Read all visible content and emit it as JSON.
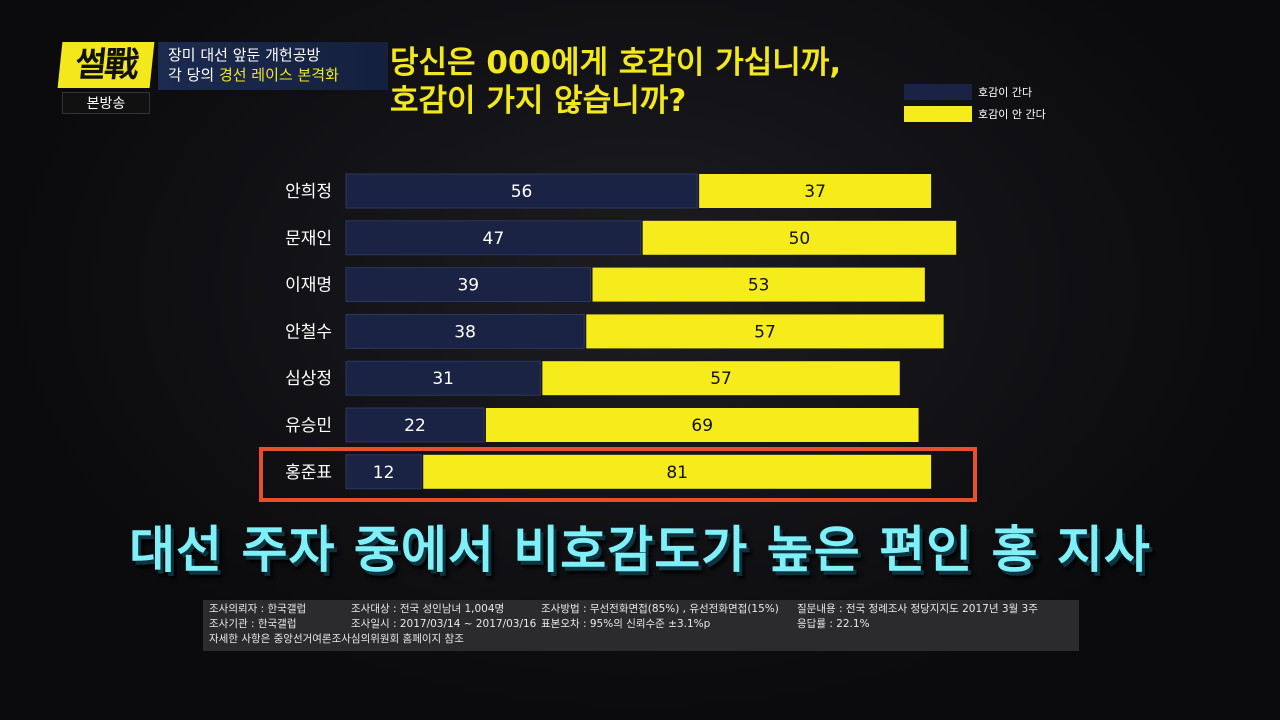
{
  "header": {
    "logo": "썰戰",
    "logo_sub": "본방송",
    "topic_line1": "장미 대선 앞둔 개헌공방",
    "topic_line2_a": "각 당의 ",
    "topic_line2_hl": "경선 레이스 본격화",
    "title_line1": "당신은 000에게 호감이 가십니까,",
    "title_line2": "호감이 가지 않습니까?"
  },
  "legend": [
    {
      "label": "호감이 간다",
      "color": "#1b2345"
    },
    {
      "label": "호감이 안 간다",
      "color": "#f6ec1c"
    }
  ],
  "chart_data": {
    "type": "bar",
    "orientation": "horizontal-stacked",
    "categories": [
      "안희정",
      "문재인",
      "이재명",
      "안철수",
      "심상정",
      "유승민",
      "홍준표"
    ],
    "series": [
      {
        "name": "호감이 간다",
        "values": [
          56,
          47,
          39,
          38,
          31,
          22,
          12
        ],
        "color": "#1b2345"
      },
      {
        "name": "호감이 안 간다",
        "values": [
          37,
          50,
          53,
          57,
          57,
          69,
          81
        ],
        "color": "#f6ec1c"
      }
    ],
    "highlight": "홍준표"
  },
  "caption": "대선 주자 중에서 비호감도가 높은 편인 홍 지사",
  "footnote": {
    "row1": [
      "조사의뢰자 : 한국갤럽",
      "조사대상 : 전국 성인남녀 1,004명",
      "조사방법 : 무선전화면접(85%) , 유선전화면접(15%)",
      "질문내용 : 전국 정례조사 정당지지도 2017년 3월 3주"
    ],
    "row2": [
      "조사기관 : 한국갤럽",
      "조사일시 : 2017/03/14 ~ 2017/03/16",
      "표본오차 : 95%의 신뢰수준 ±3.1%p",
      "응답률 : 22.1%"
    ],
    "row3": "자세한 사항은 중앙선거여론조사심의위원회 홈페이지 참조"
  }
}
